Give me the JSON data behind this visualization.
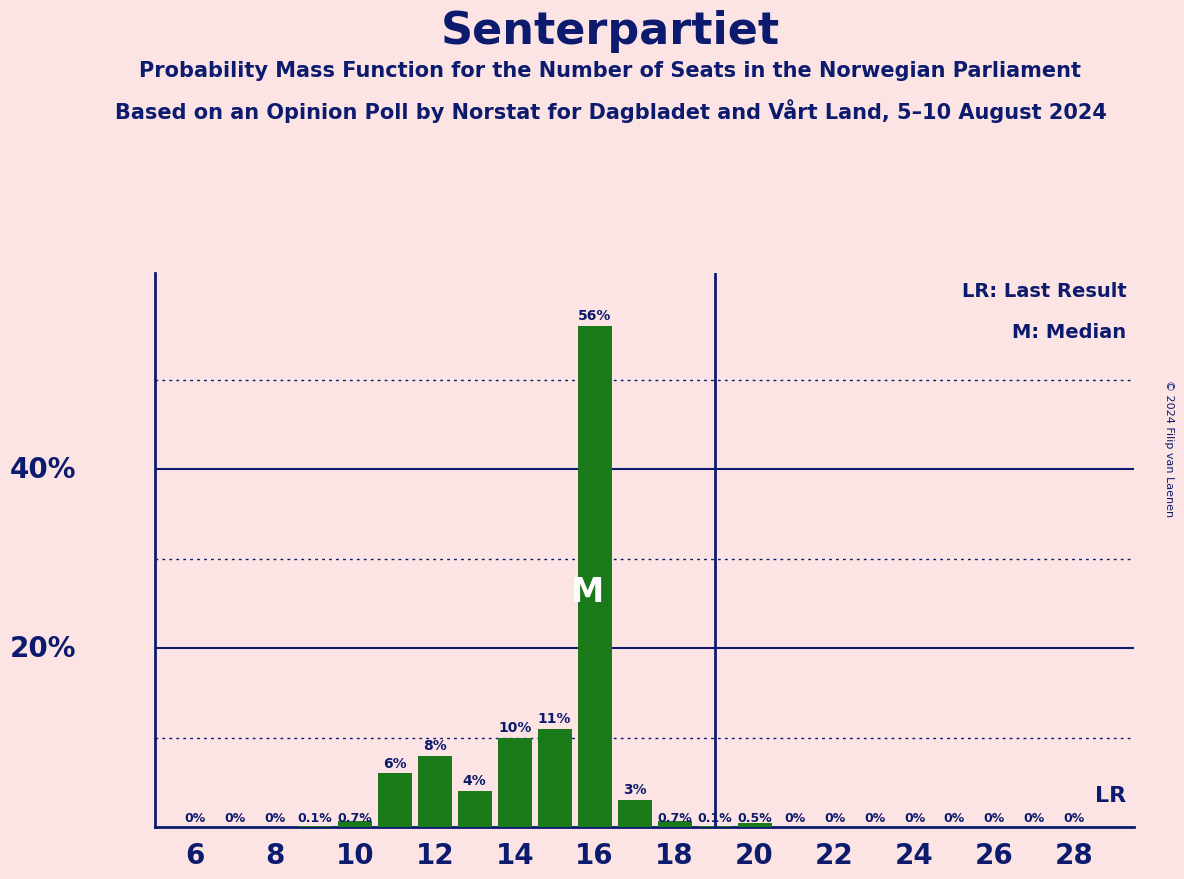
{
  "title": "Senterpartiet",
  "subtitle1": "Probability Mass Function for the Number of Seats in the Norwegian Parliament",
  "subtitle2": "Based on an Opinion Poll by Norstat for Dagbladet and Vårt Land, 5–10 August 2024",
  "copyright": "© 2024 Filip van Laenen",
  "background_color": "#fce4e4",
  "bar_color": "#1a7a1a",
  "axis_color": "#0d1b6e",
  "text_color": "#0d1b6e",
  "seats": [
    6,
    7,
    8,
    9,
    10,
    11,
    12,
    13,
    14,
    15,
    16,
    17,
    18,
    19,
    20,
    21,
    22,
    23,
    24,
    25,
    26,
    27,
    28
  ],
  "probabilities": [
    0.0,
    0.0,
    0.0,
    0.1,
    0.7,
    6.0,
    8.0,
    4.0,
    10.0,
    11.0,
    56.0,
    3.0,
    0.7,
    0.1,
    0.5,
    0.0,
    0.0,
    0.0,
    0.0,
    0.0,
    0.0,
    0.0,
    0.0
  ],
  "bar_labels": [
    "0%",
    "0%",
    "0%",
    "0.1%",
    "0.7%",
    "6%",
    "8%",
    "4%",
    "10%",
    "11%",
    "56%",
    "3%",
    "0.7%",
    "0.1%",
    "0.5%",
    "0%",
    "0%",
    "0%",
    "0%",
    "0%",
    "0%",
    "0%",
    "0%"
  ],
  "median_seat": 16,
  "lr_seat": 19,
  "solid_yticks": [
    20,
    40
  ],
  "dotted_yticks": [
    10,
    30,
    50
  ],
  "xlim": [
    5.0,
    29.5
  ],
  "ylim": [
    0,
    62
  ],
  "xlabel_seats": [
    6,
    8,
    10,
    12,
    14,
    16,
    18,
    20,
    22,
    24,
    26,
    28
  ],
  "ylabel_ticks": [
    20,
    40
  ],
  "ylabel_labels": [
    "20%",
    "40%"
  ],
  "legend_lr": "LR: Last Result",
  "legend_m": "M: Median",
  "lr_label": "LR",
  "m_label": "M"
}
